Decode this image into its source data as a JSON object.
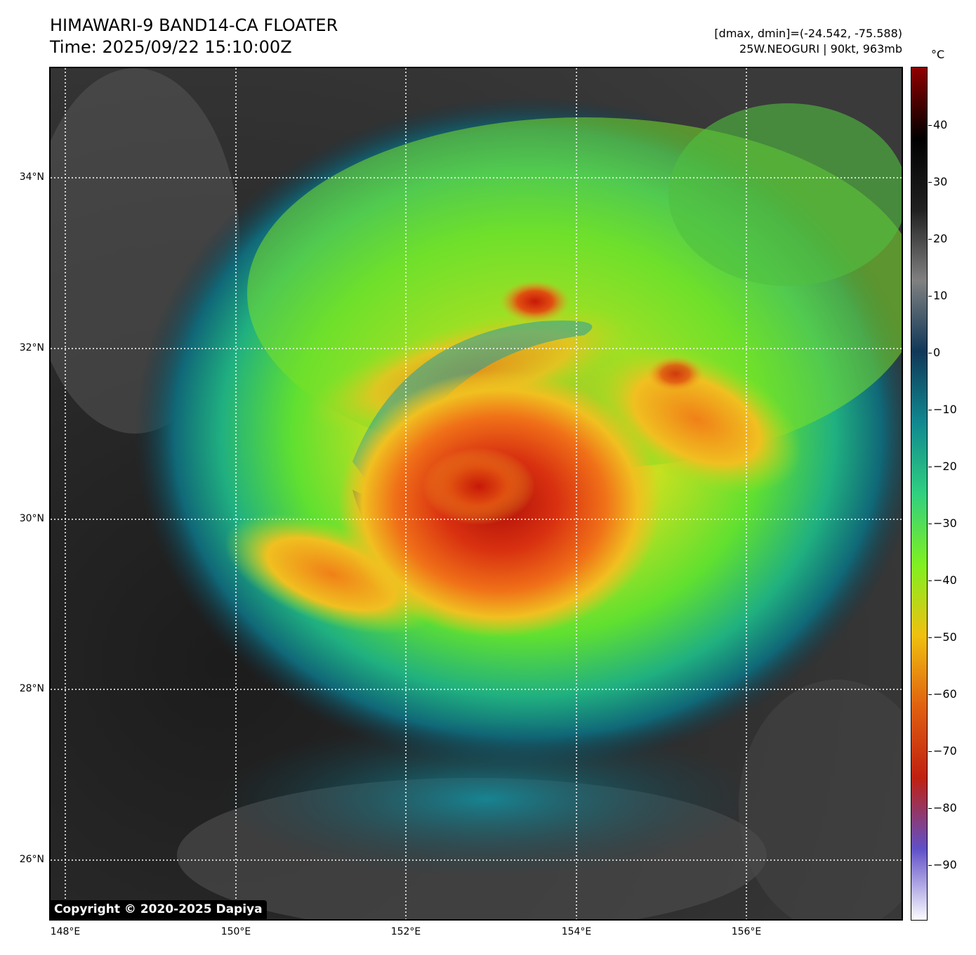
{
  "header": {
    "title": "HIMAWARI-9 BAND14-CA FLOATER",
    "time": "Time: 2025/09/22 15:10:00Z",
    "range": "[dmax, dmin]=(-24.542, -75.588)",
    "storm": "25W.NEOGURI | 90kt, 963mb"
  },
  "map": {
    "copyright": "Copyright © 2020-2025 Dapiya",
    "lat_labels": [
      "34°N",
      "32°N",
      "30°N",
      "28°N",
      "26°N"
    ],
    "lon_labels": [
      "148°E",
      "150°E",
      "152°E",
      "154°E",
      "156°E"
    ]
  },
  "colorbar": {
    "unit": "°C",
    "ticks": [
      "40",
      "30",
      "20",
      "10",
      "0",
      "−10",
      "−20",
      "−30",
      "−40",
      "−50",
      "−60",
      "−70",
      "−80",
      "−90"
    ],
    "colors": [
      "#fbfbff",
      "#6050c8",
      "#c02010",
      "#e06010",
      "#f0c010",
      "#80f020",
      "#30d080",
      "#108890",
      "#103858",
      "#808080",
      "#202020",
      "#000000",
      "#900000"
    ]
  }
}
